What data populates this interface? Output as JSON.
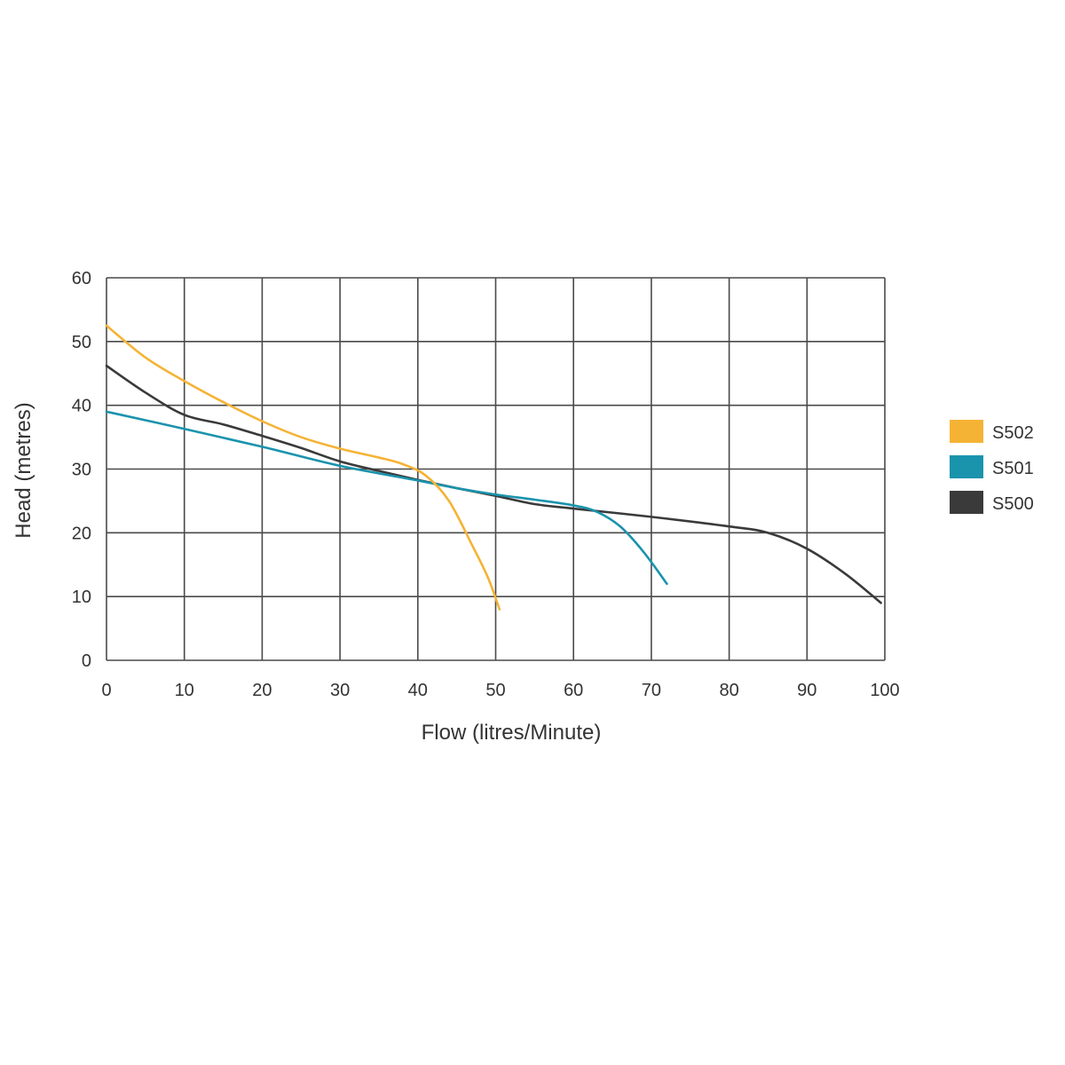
{
  "chart_data": {
    "type": "line",
    "title": "",
    "xlabel": "Flow (litres/Minute)",
    "ylabel": "Head (metres)",
    "xlim": [
      0,
      100
    ],
    "ylim": [
      0,
      60
    ],
    "xticks": [
      0,
      10,
      20,
      30,
      40,
      50,
      60,
      70,
      80,
      90,
      100
    ],
    "yticks": [
      0,
      10,
      20,
      30,
      40,
      50,
      60
    ],
    "grid": true,
    "legend_position": "right",
    "series": [
      {
        "name": "S502",
        "color": "#f5b335",
        "points": [
          [
            0,
            52.5
          ],
          [
            5,
            47.5
          ],
          [
            10,
            43.8
          ],
          [
            15,
            40.5
          ],
          [
            20,
            37.5
          ],
          [
            25,
            35.0
          ],
          [
            30,
            33.2
          ],
          [
            35,
            31.8
          ],
          [
            38,
            30.8
          ],
          [
            41,
            29.0
          ],
          [
            44,
            25.0
          ],
          [
            47,
            18.0
          ],
          [
            49,
            13.0
          ],
          [
            50.5,
            8.0
          ]
        ]
      },
      {
        "name": "S501",
        "color": "#1a93ad",
        "points": [
          [
            0,
            39.0
          ],
          [
            10,
            36.3
          ],
          [
            20,
            33.5
          ],
          [
            30,
            30.5
          ],
          [
            40,
            28.2
          ],
          [
            45,
            27.0
          ],
          [
            50,
            26.0
          ],
          [
            55,
            25.2
          ],
          [
            60,
            24.3
          ],
          [
            63,
            23.3
          ],
          [
            66,
            21.0
          ],
          [
            69,
            17.0
          ],
          [
            72,
            12.0
          ]
        ]
      },
      {
        "name": "S500",
        "color": "#3a3a3a",
        "points": [
          [
            0,
            46.2
          ],
          [
            5,
            42.0
          ],
          [
            10,
            38.5
          ],
          [
            15,
            37.0
          ],
          [
            20,
            35.2
          ],
          [
            25,
            33.3
          ],
          [
            30,
            31.2
          ],
          [
            35,
            29.7
          ],
          [
            40,
            28.3
          ],
          [
            45,
            27.0
          ],
          [
            50,
            25.8
          ],
          [
            55,
            24.5
          ],
          [
            60,
            23.8
          ],
          [
            70,
            22.5
          ],
          [
            80,
            21.0
          ],
          [
            85,
            20.0
          ],
          [
            90,
            17.5
          ],
          [
            95,
            13.5
          ],
          [
            99.5,
            9.0
          ]
        ]
      }
    ]
  }
}
